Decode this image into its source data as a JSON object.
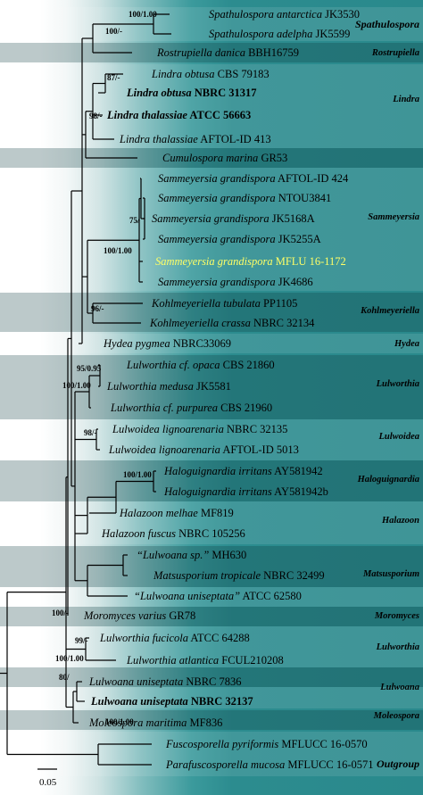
{
  "taxa": [
    {
      "name": "Spathulospora antarctica",
      "code": "JK3530",
      "bold": false,
      "highlight": false
    },
    {
      "name": "Spathulospora adelpha",
      "code": "JK5599",
      "bold": false,
      "highlight": false
    },
    {
      "name": "Rostrupiella danica",
      "code": "BBH16759",
      "bold": false,
      "highlight": false
    },
    {
      "name": "Lindra obtusa",
      "code": "CBS 79183",
      "bold": false,
      "highlight": false
    },
    {
      "name": "Lindra obtusa",
      "code": "NBRC 31317",
      "bold": true,
      "highlight": false
    },
    {
      "name": "Lindra thalassiae",
      "code": "ATCC 56663",
      "bold": true,
      "highlight": false
    },
    {
      "name": "Lindra thalassiae",
      "code": "AFTOL-ID 413",
      "bold": false,
      "highlight": false
    },
    {
      "name": "Cumulospora marina",
      "code": "GR53",
      "bold": false,
      "highlight": false
    },
    {
      "name": "Sammeyersia grandispora",
      "code": "AFTOL-ID 424",
      "bold": false,
      "highlight": false
    },
    {
      "name": "Sammeyersia grandispora",
      "code": "NTOU3841",
      "bold": false,
      "highlight": false
    },
    {
      "name": "Sammeyersia grandispora",
      "code": "JK5168A",
      "bold": false,
      "highlight": false
    },
    {
      "name": "Sammeyersia grandispora",
      "code": "JK5255A",
      "bold": false,
      "highlight": false
    },
    {
      "name": "Sammeyersia grandispora",
      "code": "MFLU 16-1172",
      "bold": false,
      "highlight": true
    },
    {
      "name": "Sammeyersia grandispora",
      "code": "JK4686",
      "bold": false,
      "highlight": false
    },
    {
      "name": "Kohlmeyeriella tubulata",
      "code": "PP1105",
      "bold": false,
      "highlight": false
    },
    {
      "name": "Kohlmeyeriella crassa",
      "code": "NBRC 32134",
      "bold": false,
      "highlight": false
    },
    {
      "name": "Hydea pygmea",
      "code": "NBRC33069",
      "bold": false,
      "highlight": false
    },
    {
      "name": "Lulworthia cf. opaca",
      "code": "CBS 21860",
      "bold": false,
      "highlight": false
    },
    {
      "name": "Lulworthia medusa",
      "code": "JK5581",
      "bold": false,
      "highlight": false
    },
    {
      "name": "Lulworthia cf. purpurea",
      "code": "CBS 21960",
      "bold": false,
      "highlight": false
    },
    {
      "name": "Lulwoidea lignoarenaria",
      "code": "NBRC 32135",
      "bold": false,
      "highlight": false
    },
    {
      "name": "Lulwoidea lignoarenaria",
      "code": "AFTOL-ID 5013",
      "bold": false,
      "highlight": false
    },
    {
      "name": "Haloguignardia irritans",
      "code": "AY581942",
      "bold": false,
      "highlight": false
    },
    {
      "name": "Haloguignardia irritans",
      "code": "AY581942b",
      "bold": false,
      "highlight": false
    },
    {
      "name": "Halazoon melhae",
      "code": "MF819",
      "bold": false,
      "highlight": false
    },
    {
      "name": "Halazoon fuscus",
      "code": "NBRC 105256",
      "bold": false,
      "highlight": false
    },
    {
      "name": "“Lulwoana sp.”",
      "code": "MH630",
      "bold": false,
      "highlight": false
    },
    {
      "name": "Matsusporium tropicale",
      "code": "NBRC 32499",
      "bold": false,
      "highlight": false
    },
    {
      "name": "“Lulwoana uniseptata”",
      "code": "ATCC 62580",
      "bold": false,
      "highlight": false
    },
    {
      "name": "Moromyces varius",
      "code": "GR78",
      "bold": false,
      "highlight": false
    },
    {
      "name": "Lulworthia fucicola",
      "code": "ATCC 64288",
      "bold": false,
      "highlight": false
    },
    {
      "name": "Lulworthia atlantica",
      "code": "FCUL210208",
      "bold": false,
      "highlight": false
    },
    {
      "name": "Lulwoana uniseptata",
      "code": "NBRC 7836",
      "bold": false,
      "highlight": false
    },
    {
      "name": "Lulwoana uniseptata",
      "code": "NBRC 32137",
      "bold": true,
      "highlight": false
    },
    {
      "name": "Moleospora maritima",
      "code": "MF836",
      "bold": false,
      "highlight": false
    },
    {
      "name": "Fuscosporella pyriformis",
      "code": "MFLUCC 16-0570",
      "bold": false,
      "highlight": false
    },
    {
      "name": "Parafuscosporella mucosa",
      "code": "MFLUCC 16-0571",
      "bold": false,
      "highlight": false
    }
  ],
  "clades": [
    {
      "label": "Spathulospora",
      "big": true
    },
    {
      "label": "Rostrupiella",
      "big": false
    },
    {
      "label": "Lindra",
      "big": false
    },
    {
      "label": "Sammeyersia",
      "big": false
    },
    {
      "label": "Kohlmeyeriella",
      "big": false
    },
    {
      "label": "Hydea",
      "big": false
    },
    {
      "label": "Lulworthia",
      "big": false
    },
    {
      "label": "Lulwoidea",
      "big": false
    },
    {
      "label": "Haloguignardia",
      "big": false
    },
    {
      "label": "Halazoon",
      "big": false
    },
    {
      "label": "Matsusporium",
      "big": false
    },
    {
      "label": "Moromyces",
      "big": false
    },
    {
      "label": "Lulworthia",
      "big": false
    },
    {
      "label": "Lulwoana",
      "big": false
    },
    {
      "label": "Moleospora",
      "big": false
    },
    {
      "label": "Outgroup",
      "big": true
    }
  ],
  "supports": [
    "100/1.00",
    "100/-",
    "87/-",
    "98/-",
    "75/",
    "100/1.00",
    "96/-",
    "95/0.95",
    "100/1.00",
    "98/-",
    "100/1.00",
    "100/-",
    "99/-",
    "100/1.00",
    "80/",
    "100/1.00"
  ],
  "scale": {
    "label": "0.05"
  }
}
